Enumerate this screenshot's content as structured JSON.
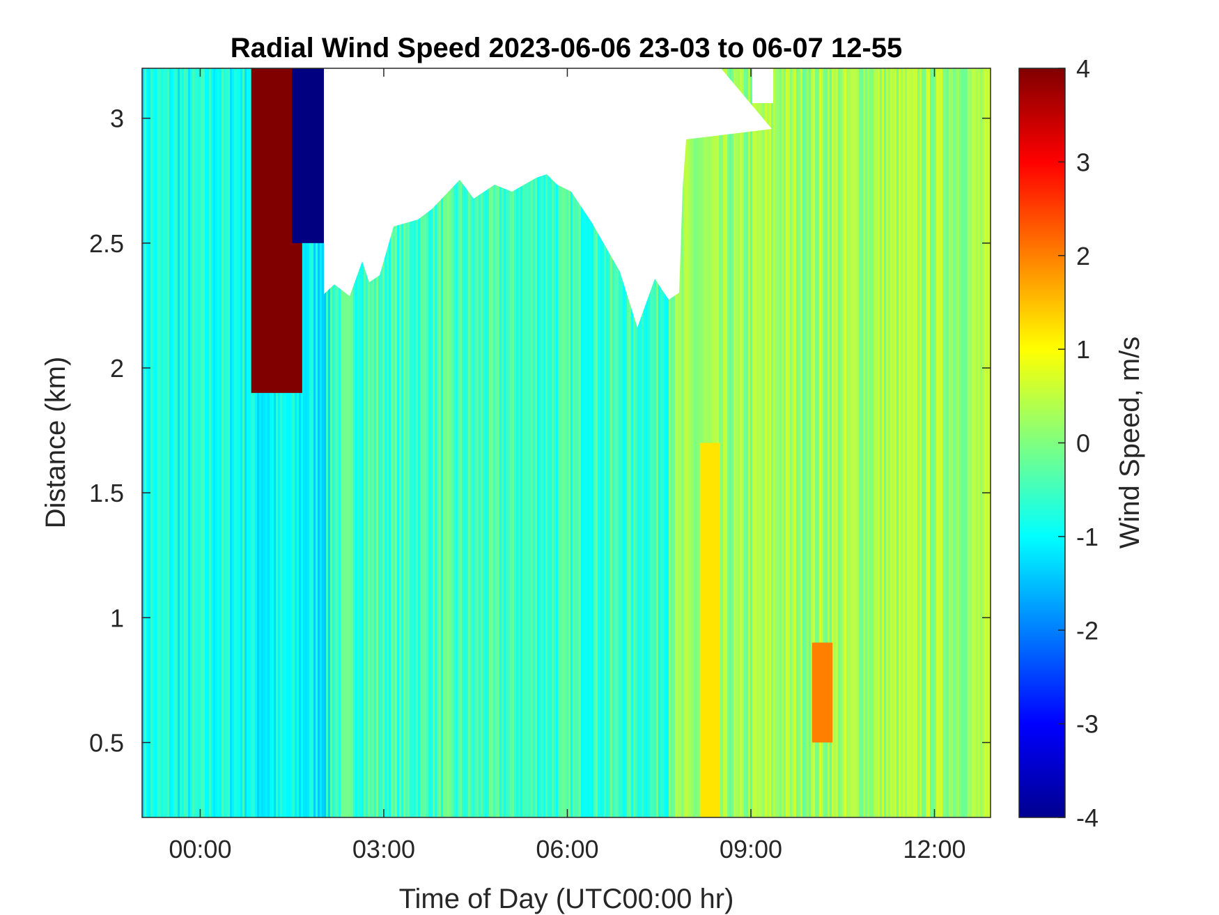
{
  "chart_data": {
    "type": "heatmap",
    "title": "Radial Wind Speed 2023-06-06 23-03 to 06-07 12-55",
    "xlabel": "Time of Day (UTC00:00 hr)",
    "ylabel": "Distance (km)",
    "colorbar_label": "Wind Speed, m/s",
    "xlim": [
      "2023-06-06 23:03",
      "2023-06-07 12:55"
    ],
    "x_ticks": [
      "00:00",
      "03:00",
      "06:00",
      "09:00",
      "12:00"
    ],
    "ylim": [
      0.2,
      3.2
    ],
    "y_ticks": [
      {
        "value": 3,
        "label": "3"
      },
      {
        "value": 2.5,
        "label": "2.5"
      },
      {
        "value": 2,
        "label": "2"
      },
      {
        "value": 1.5,
        "label": "1.5"
      },
      {
        "value": 1,
        "label": "1"
      },
      {
        "value": 0.5,
        "label": "0.5"
      }
    ],
    "clim": [
      -4,
      4
    ],
    "colorbar_ticks": [
      "4",
      "3",
      "2",
      "1",
      "0",
      "-1",
      "-2",
      "-3",
      "-4"
    ],
    "colormap": "jet",
    "missing_data_color": "#ffffff",
    "features": [
      {
        "time_start": "00:50",
        "time_end": "01:40",
        "distance_min": 1.9,
        "distance_max": 3.2,
        "value": 4,
        "description": "strong positive wind speed streak"
      },
      {
        "time_start": "01:30",
        "time_end": "02:15",
        "distance_min": 2.5,
        "distance_max": 3.2,
        "value": -4,
        "description": "strong negative wind speed streak"
      },
      {
        "time_start": "08:10",
        "time_end": "08:30",
        "distance_min": 0.2,
        "distance_max": 1.7,
        "value": 1.2,
        "description": "positive band"
      },
      {
        "time_start": "10:00",
        "time_end": "10:20",
        "distance_min": 0.5,
        "distance_max": 0.9,
        "value": 2,
        "description": "positive spot"
      }
    ]
  }
}
